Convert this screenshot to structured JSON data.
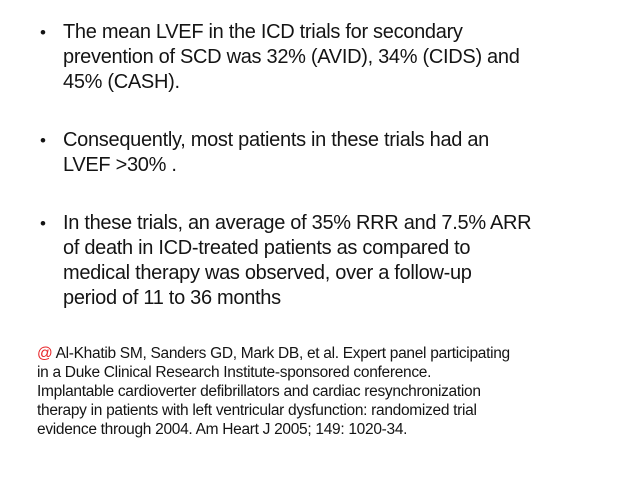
{
  "slide": {
    "background_color": "#ffffff",
    "text_color": "#141414",
    "accent_red": "#e8262a",
    "bullet_char": "•",
    "bullets": [
      {
        "lines": [
          "The mean LVEF in the ICD trials for secondary",
          "prevention of SCD was 32% (AVID), 34% (CIDS) and",
          "45% (CASH)."
        ]
      },
      {
        "lines": [
          "Consequently, most patients in these trials had an",
          "LVEF >30% ."
        ]
      },
      {
        "lines": [
          "In these trials, an average of 35% RRR and 7.5% ARR",
          "of death in ICD-treated patients as compared to",
          "medical therapy was observed, over a follow-up",
          "period of 11 to 36 months"
        ]
      }
    ],
    "citation": {
      "symbol": "@",
      "lines": [
        "Al-Khatib SM, Sanders GD, Mark DB, et al. Expert panel participating",
        "in a Duke Clinical Research Institute-sponsored conference.",
        "Implantable cardioverter defibrillators and cardiac resynchronization",
        "therapy in patients with left ventricular dysfunction: randomized trial",
        "evidence through 2004. Am Heart J 2005; 149: 1020-34."
      ]
    }
  }
}
